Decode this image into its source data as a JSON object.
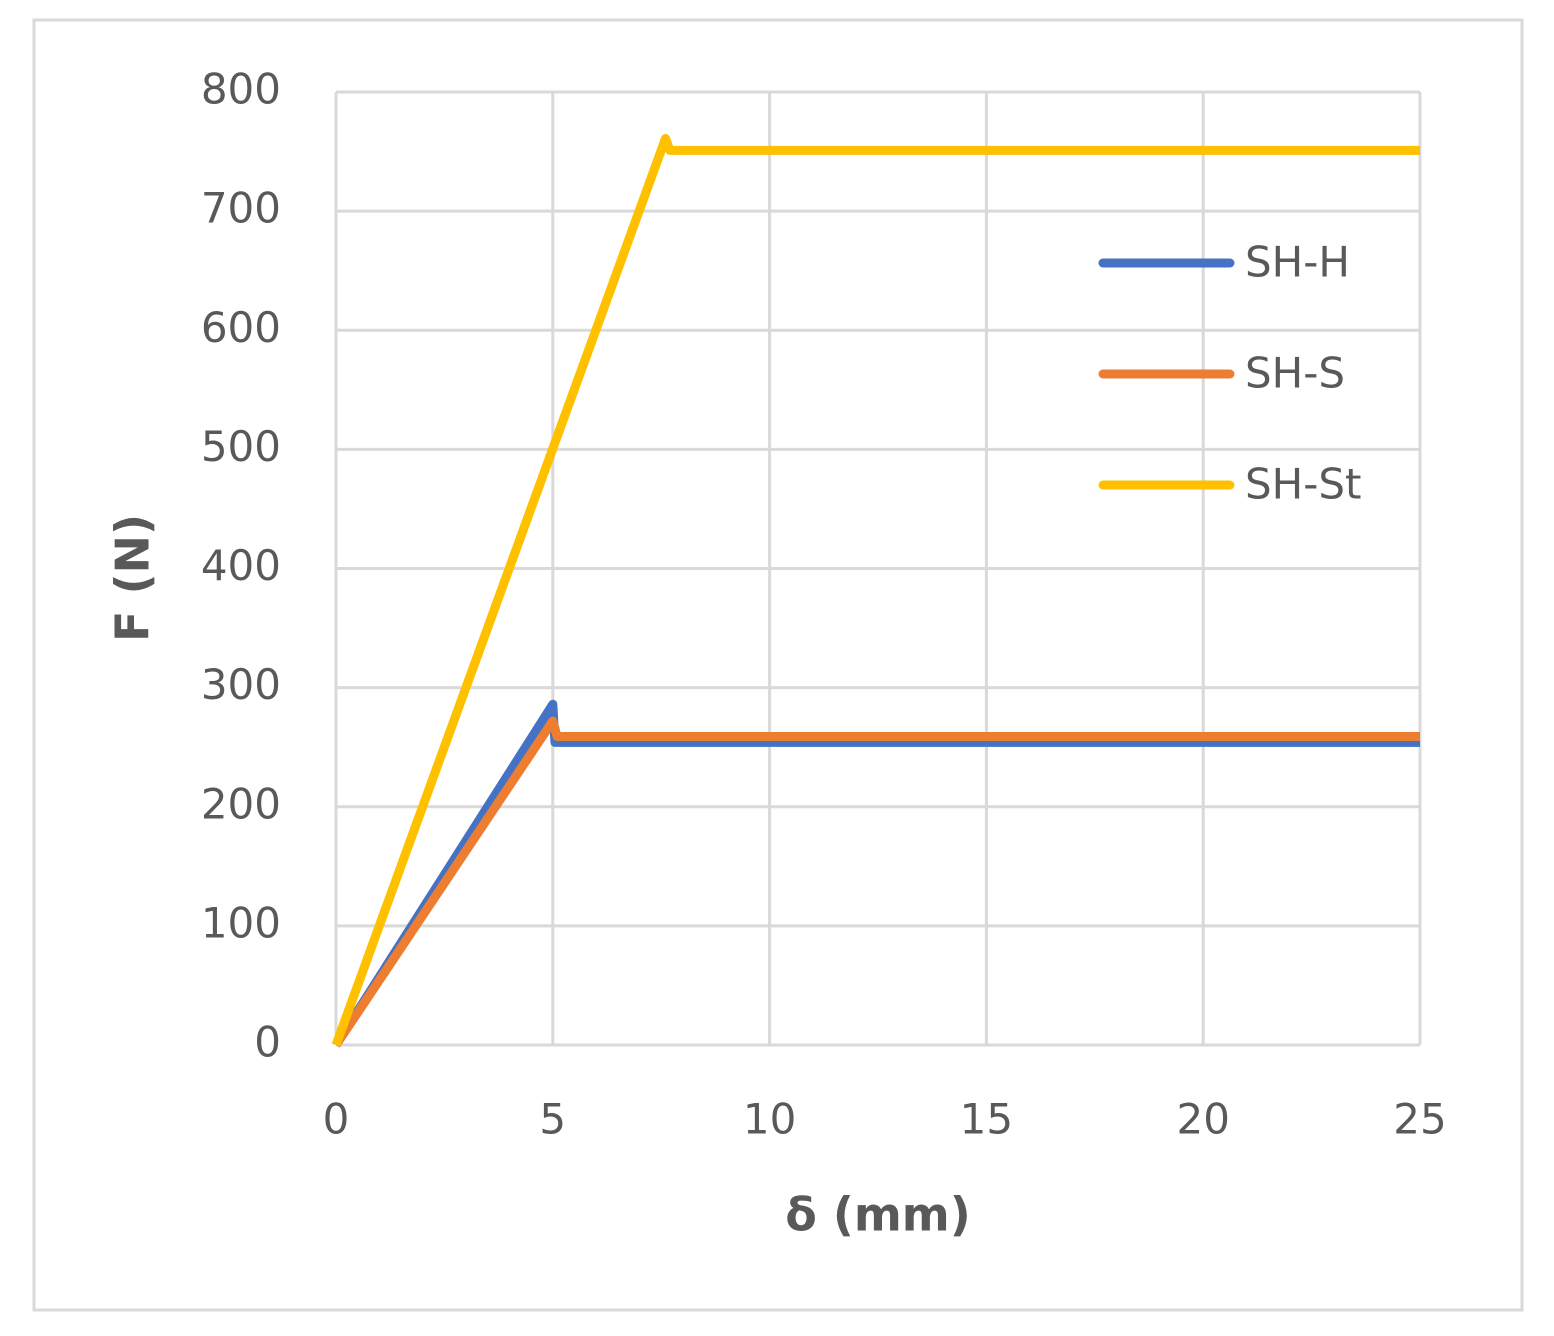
{
  "chart_data": {
    "type": "line",
    "x_label": "δ (mm)",
    "y_label": "F (N)",
    "xlim": [
      0,
      25
    ],
    "xticks": [
      0,
      5,
      10,
      15,
      20,
      25
    ],
    "ylim": [
      0,
      800
    ],
    "yticks": [
      0,
      100,
      200,
      300,
      400,
      500,
      600,
      700,
      800
    ],
    "grid": true,
    "legend": "upper right",
    "series": [
      {
        "name": "SH-H",
        "color": "#4472c4",
        "x": [
          0,
          5,
          5.05,
          25
        ],
        "values": [
          0,
          286,
          254,
          254
        ]
      },
      {
        "name": "SH-S",
        "color": "#ed7d31",
        "x": [
          0,
          5,
          5.1,
          25
        ],
        "values": [
          0,
          272,
          259,
          259
        ]
      },
      {
        "name": "SH-St",
        "color": "#ffc000",
        "x": [
          0,
          7.6,
          7.7,
          25
        ],
        "values": [
          0,
          761,
          751,
          751
        ]
      }
    ]
  }
}
